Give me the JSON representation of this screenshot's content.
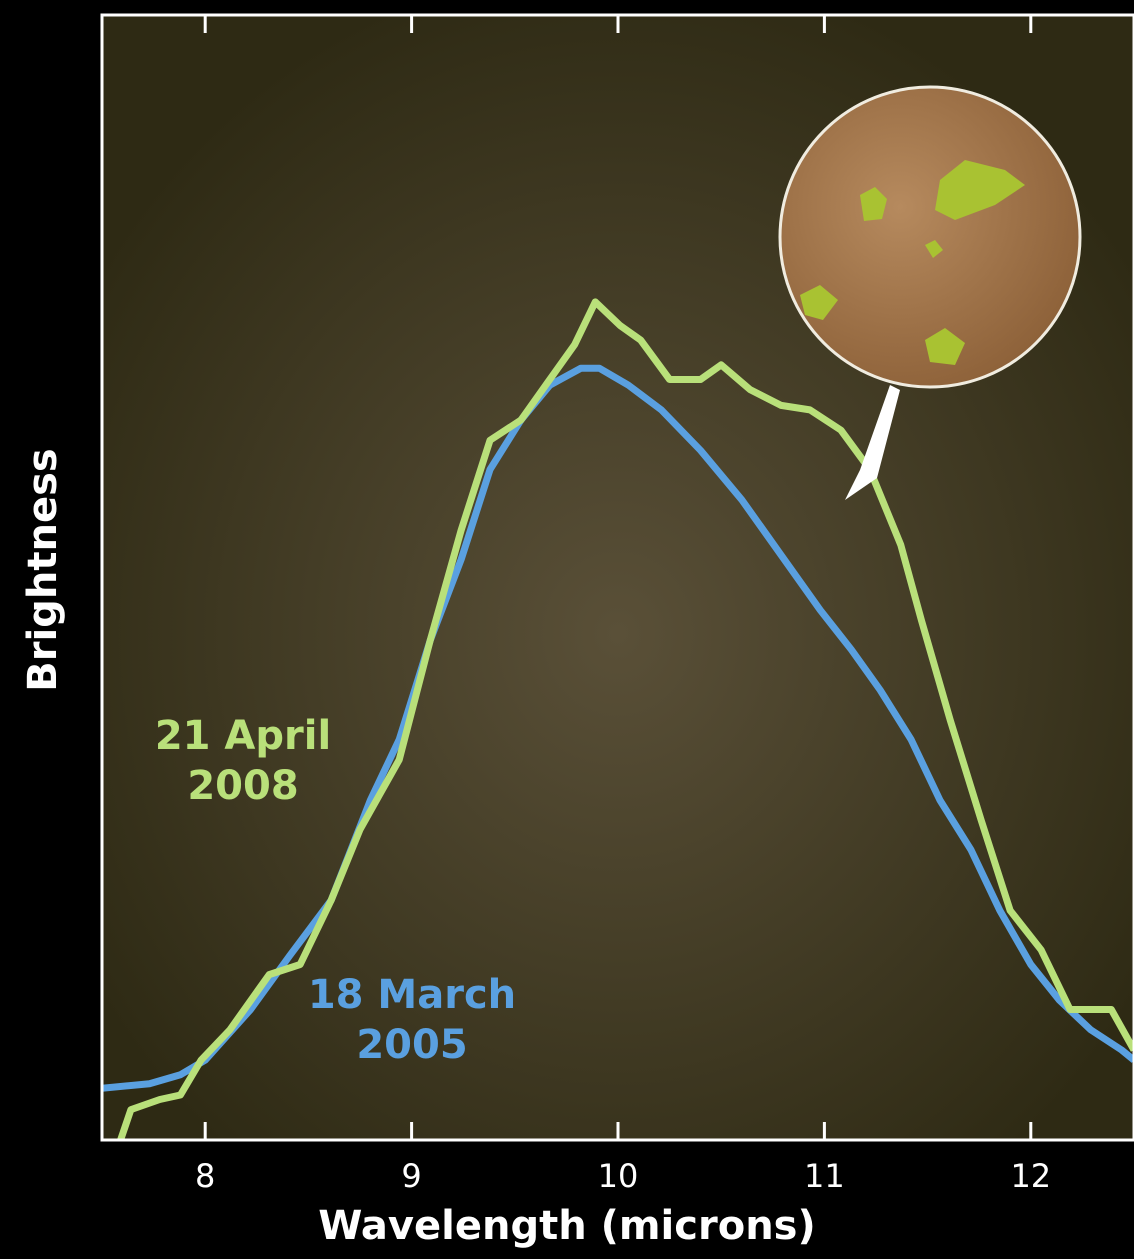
{
  "chart_data": {
    "type": "line",
    "x_label": "Wavelength (microns)",
    "y_label": "Brightness",
    "xlim": [
      7.5,
      12.5
    ],
    "ylim": [
      0,
      100
    ],
    "xticks": [
      8,
      9,
      10,
      11,
      12
    ],
    "series": [
      {
        "name": "18 March 2005",
        "color": "#5aa0e0",
        "x": [
          7.5,
          7.73,
          7.88,
          8.0,
          8.22,
          8.41,
          8.61,
          8.8,
          8.94,
          9.09,
          9.24,
          9.38,
          9.53,
          9.67,
          9.82,
          9.91,
          10.05,
          10.21,
          10.4,
          10.6,
          10.79,
          10.98,
          11.13,
          11.27,
          11.42,
          11.56,
          11.71,
          11.85,
          12.0,
          12.14,
          12.29,
          12.44,
          12.5
        ],
        "values": [
          4.6,
          5.0,
          5.8,
          7.1,
          11.6,
          16.4,
          21.3,
          30.2,
          35.6,
          44.4,
          51.6,
          59.6,
          64.0,
          67.1,
          68.6,
          68.6,
          67.1,
          64.9,
          61.3,
          56.9,
          52.0,
          47.1,
          43.6,
          40.0,
          35.6,
          30.2,
          25.8,
          20.4,
          15.6,
          12.4,
          9.8,
          8.0,
          7.1
        ]
      },
      {
        "name": "21 April 2008",
        "color": "#b9e07a",
        "x": [
          7.59,
          7.64,
          7.78,
          7.88,
          7.98,
          8.12,
          8.31,
          8.46,
          8.61,
          8.75,
          8.94,
          9.09,
          9.24,
          9.38,
          9.53,
          9.65,
          9.79,
          9.89,
          10.01,
          10.11,
          10.25,
          10.4,
          10.5,
          10.64,
          10.79,
          10.93,
          11.08,
          11.22,
          11.37,
          11.47,
          11.61,
          11.76,
          11.9,
          12.05,
          12.19,
          12.39,
          12.5
        ],
        "values": [
          0,
          2.7,
          3.6,
          4.0,
          7.1,
          9.8,
          14.7,
          15.6,
          21.3,
          27.6,
          33.8,
          44.4,
          54.2,
          62.2,
          64.0,
          67.1,
          70.7,
          74.5,
          72.4,
          71.1,
          67.6,
          67.6,
          68.9,
          66.7,
          65.3,
          64.9,
          63.1,
          59.6,
          52.9,
          46.2,
          37.3,
          28.4,
          20.4,
          16.9,
          11.6,
          11.6,
          8.0
        ]
      }
    ]
  }
}
